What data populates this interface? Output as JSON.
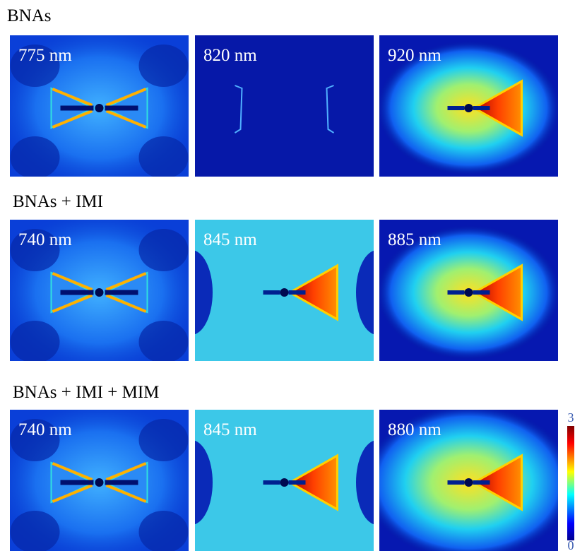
{
  "rows": [
    {
      "title": "BNAs",
      "panels": [
        "775 nm",
        "820 nm",
        "920 nm"
      ]
    },
    {
      "title": "BNAs + IMI",
      "panels": [
        "740 nm",
        "845 nm",
        "885 nm"
      ]
    },
    {
      "title": "BNAs + IMI + MIM",
      "panels": [
        "740 nm",
        "845 nm",
        "880 nm"
      ]
    }
  ],
  "colorbar": {
    "max": 3,
    "min": 0
  }
}
